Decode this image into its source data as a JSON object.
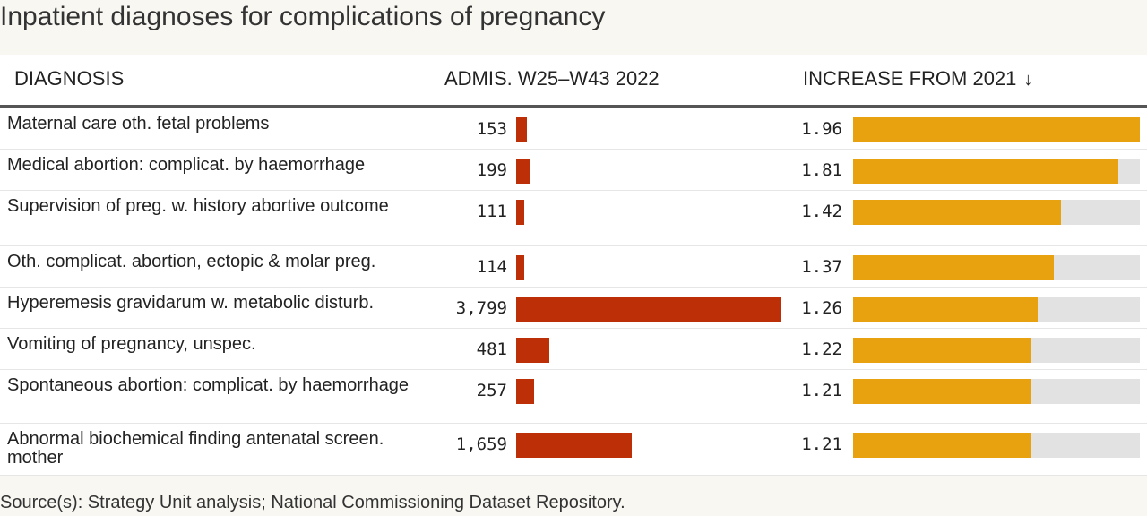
{
  "title": "Inpatient diagnoses for complications of pregnancy",
  "source": "Source(s): Strategy Unit analysis; National Commissioning Dataset Repository.",
  "colors": {
    "admissions_bar": "#bd2f07",
    "increase_bar": "#e9a20f",
    "track": "#e2e2e2"
  },
  "chart_data": {
    "type": "table",
    "columns": [
      "DIAGNOSIS",
      "ADMIS. W25–W43 2022",
      "INCREASE FROM 2021"
    ],
    "sort_indicator": "↓",
    "admissions_max": 3799,
    "increase_max": 1.96,
    "rows": [
      {
        "diagnosis": "Maternal care oth. fetal problems",
        "admissions": 153,
        "admissions_label": "153",
        "increase": 1.96,
        "increase_label": "1.96"
      },
      {
        "diagnosis": "Medical abortion: complicat. by haemorrhage",
        "admissions": 199,
        "admissions_label": "199",
        "increase": 1.81,
        "increase_label": "1.81"
      },
      {
        "diagnosis": "Supervision of preg. w. history abortive outcome",
        "admissions": 111,
        "admissions_label": "111",
        "increase": 1.42,
        "increase_label": "1.42"
      },
      {
        "diagnosis": "Oth. complicat. abortion, ectopic & molar preg.",
        "admissions": 114,
        "admissions_label": "114",
        "increase": 1.37,
        "increase_label": "1.37"
      },
      {
        "diagnosis": "Hyperemesis gravidarum w. metabolic disturb.",
        "admissions": 3799,
        "admissions_label": "3,799",
        "increase": 1.26,
        "increase_label": "1.26"
      },
      {
        "diagnosis": "Vomiting of pregnancy, unspec.",
        "admissions": 481,
        "admissions_label": "481",
        "increase": 1.22,
        "increase_label": "1.22"
      },
      {
        "diagnosis": "Spontaneous abortion: complicat. by haemorrhage",
        "admissions": 257,
        "admissions_label": "257",
        "increase": 1.21,
        "increase_label": "1.21"
      },
      {
        "diagnosis": "Abnormal biochemical finding antenatal screen. mother",
        "admissions": 1659,
        "admissions_label": "1,659",
        "increase": 1.21,
        "increase_label": "1.21"
      }
    ]
  }
}
